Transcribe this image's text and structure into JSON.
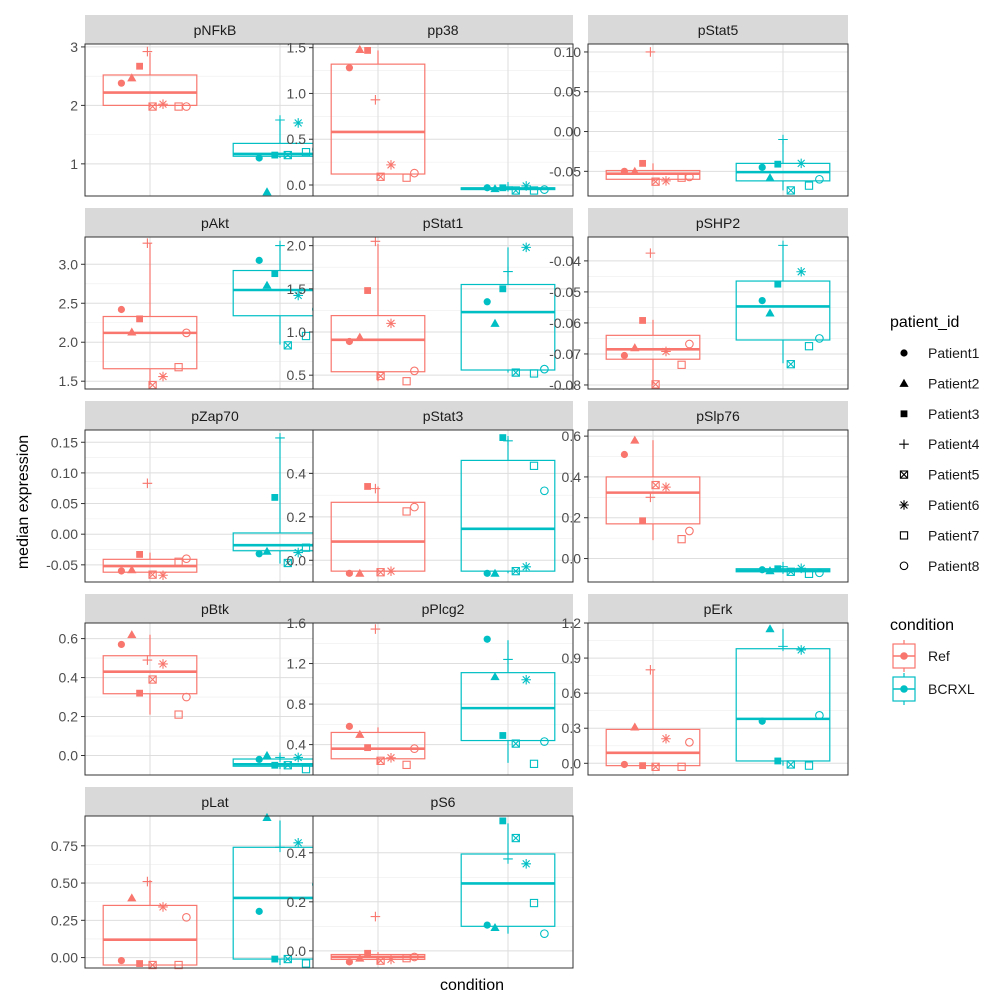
{
  "figure": {
    "xlabel": "condition",
    "ylabel": "median expression"
  },
  "legend": {
    "patient_title": "patient_id",
    "patients": [
      {
        "label": "Patient1",
        "shape": "circle-filled"
      },
      {
        "label": "Patient2",
        "shape": "triangle-filled"
      },
      {
        "label": "Patient3",
        "shape": "square-filled"
      },
      {
        "label": "Patient4",
        "shape": "plus"
      },
      {
        "label": "Patient5",
        "shape": "square-cross"
      },
      {
        "label": "Patient6",
        "shape": "asterisk"
      },
      {
        "label": "Patient7",
        "shape": "square-open"
      },
      {
        "label": "Patient8",
        "shape": "circle-open"
      }
    ],
    "condition_title": "condition",
    "conditions": [
      {
        "label": "Ref",
        "color": "#F8766D"
      },
      {
        "label": "BCRXL",
        "color": "#00BFC4"
      }
    ]
  },
  "chart_data": [
    {
      "type": "box",
      "title": "pNFkB",
      "ylim": [
        0.45,
        3.05
      ],
      "ticks": [
        1,
        2,
        3
      ],
      "tick_labels": [
        "1",
        "2",
        "3"
      ],
      "ref": {
        "min": 1.97,
        "q1": 2.0,
        "median": 2.22,
        "q3": 2.52,
        "max": 2.9,
        "points": [
          2.38,
          2.47,
          2.67,
          2.92,
          1.98,
          2.02,
          1.98,
          1.98
        ]
      },
      "bcrxl": {
        "min": 1.1,
        "q1": 1.13,
        "median": 1.17,
        "q3": 1.35,
        "max": 1.74,
        "points": [
          1.1,
          0.52,
          1.15,
          1.75,
          1.15,
          1.7,
          1.2,
          1.25
        ]
      }
    },
    {
      "type": "box",
      "title": "pp38",
      "ylim": [
        -0.12,
        1.54
      ],
      "ticks": [
        0.0,
        0.5,
        1.0,
        1.5
      ],
      "tick_labels": [
        "0.0",
        "0.5",
        "1.0",
        "1.5"
      ],
      "ref": {
        "min": 0.1,
        "q1": 0.12,
        "median": 0.58,
        "q3": 1.32,
        "max": 1.47,
        "points": [
          1.28,
          1.48,
          1.47,
          0.93,
          0.09,
          0.22,
          0.08,
          0.13
        ]
      },
      "bcrxl": {
        "min": -0.06,
        "q1": -0.05,
        "median": -0.04,
        "q3": -0.03,
        "max": -0.02,
        "points": [
          -0.03,
          -0.04,
          -0.03,
          -0.02,
          -0.06,
          -0.01,
          -0.06,
          -0.05
        ]
      }
    },
    {
      "type": "box",
      "title": "pStat5",
      "ylim": [
        -0.081,
        0.11
      ],
      "ticks": [
        -0.05,
        0.0,
        0.05,
        0.1
      ],
      "tick_labels": [
        "-0.05",
        "0.00",
        "0.05",
        "0.10"
      ],
      "ref": {
        "min": -0.063,
        "q1": -0.06,
        "median": -0.053,
        "q3": -0.049,
        "max": -0.04,
        "points": [
          -0.05,
          -0.05,
          -0.04,
          0.1,
          -0.063,
          -0.062,
          -0.058,
          -0.057
        ]
      },
      "bcrxl": {
        "min": -0.074,
        "q1": -0.062,
        "median": -0.051,
        "q3": -0.04,
        "max": -0.01,
        "points": [
          -0.045,
          -0.058,
          -0.041,
          -0.01,
          -0.074,
          -0.04,
          -0.068,
          -0.06
        ]
      }
    },
    {
      "type": "box",
      "title": "pAkt",
      "ylim": [
        1.4,
        3.35
      ],
      "ticks": [
        1.5,
        2.0,
        2.5,
        3.0
      ],
      "tick_labels": [
        "1.5",
        "2.0",
        "2.5",
        "3.0"
      ],
      "ref": {
        "min": 1.45,
        "q1": 1.66,
        "median": 2.12,
        "q3": 2.33,
        "max": 3.27,
        "points": [
          2.42,
          2.13,
          2.3,
          3.27,
          1.45,
          1.56,
          1.68,
          2.12
        ]
      },
      "bcrxl": {
        "min": 1.97,
        "q1": 2.34,
        "median": 2.67,
        "q3": 2.92,
        "max": 3.24,
        "points": [
          3.05,
          2.73,
          2.88,
          3.24,
          1.96,
          2.6,
          2.08,
          2.42
        ]
      }
    },
    {
      "type": "box",
      "title": "pStat1",
      "ylim": [
        0.34,
        2.1
      ],
      "ticks": [
        0.5,
        1.0,
        1.5,
        2.0
      ],
      "tick_labels": [
        "0.5",
        "1.0",
        "1.5",
        "2.0"
      ],
      "ref": {
        "min": 0.43,
        "q1": 0.54,
        "median": 0.91,
        "q3": 1.19,
        "max": 2.02,
        "points": [
          0.89,
          0.94,
          1.48,
          2.05,
          0.49,
          1.1,
          0.43,
          0.55
        ]
      },
      "bcrxl": {
        "min": 0.53,
        "q1": 0.56,
        "median": 1.23,
        "q3": 1.55,
        "max": 1.98,
        "points": [
          1.35,
          1.1,
          1.5,
          1.7,
          0.53,
          1.98,
          0.52,
          0.57
        ]
      }
    },
    {
      "type": "box",
      "title": "pSHP2",
      "ylim": [
        -0.0813,
        -0.0323
      ],
      "ticks": [
        -0.08,
        -0.07,
        -0.06,
        -0.05,
        -0.04
      ],
      "tick_labels": [
        "-0.08",
        "-0.07",
        "-0.06",
        "-0.05",
        "-0.04"
      ],
      "ref": {
        "min": -0.08,
        "q1": -0.0717,
        "median": -0.0685,
        "q3": -0.064,
        "max": -0.059,
        "points": [
          -0.0705,
          -0.068,
          -0.0592,
          -0.0375,
          -0.0798,
          -0.0692,
          -0.0735,
          -0.0668
        ]
      },
      "bcrxl": {
        "min": -0.073,
        "q1": -0.0655,
        "median": -0.0547,
        "q3": -0.0465,
        "max": -0.035,
        "points": [
          -0.0528,
          -0.0568,
          -0.0475,
          -0.035,
          -0.0733,
          -0.0435,
          -0.0675,
          -0.065
        ]
      }
    },
    {
      "type": "box",
      "title": "pZap70",
      "ylim": [
        -0.078,
        0.17
      ],
      "ticks": [
        -0.05,
        0.0,
        0.05,
        0.1,
        0.15
      ],
      "tick_labels": [
        "-0.05",
        "0.00",
        "0.05",
        "0.10",
        "0.15"
      ],
      "ref": {
        "min": -0.068,
        "q1": -0.062,
        "median": -0.052,
        "q3": -0.041,
        "max": -0.03,
        "points": [
          -0.06,
          -0.058,
          -0.033,
          0.083,
          -0.066,
          -0.067,
          -0.045,
          -0.04
        ]
      },
      "bcrxl": {
        "min": -0.048,
        "q1": -0.027,
        "median": -0.018,
        "q3": 0.002,
        "max": 0.158,
        "points": [
          -0.032,
          -0.028,
          0.06,
          0.157,
          -0.047,
          -0.03,
          -0.022,
          -0.018
        ]
      }
    },
    {
      "type": "box",
      "title": "pStat3",
      "ylim": [
        -0.1,
        0.6
      ],
      "ticks": [
        0.0,
        0.2,
        0.4
      ],
      "tick_labels": [
        "0.0",
        "0.2",
        "0.4"
      ],
      "ref": {
        "min": -0.06,
        "q1": -0.05,
        "median": 0.086,
        "q3": 0.267,
        "max": 0.34,
        "points": [
          -0.06,
          -0.06,
          0.34,
          0.33,
          -0.055,
          -0.05,
          0.225,
          0.245
        ]
      },
      "bcrxl": {
        "min": -0.06,
        "q1": -0.05,
        "median": 0.145,
        "q3": 0.46,
        "max": 0.56,
        "points": [
          -0.06,
          -0.06,
          0.565,
          0.55,
          -0.05,
          -0.03,
          0.435,
          0.32
        ]
      }
    },
    {
      "type": "box",
      "title": "pSlp76",
      "ylim": [
        -0.115,
        0.63
      ],
      "ticks": [
        0.0,
        0.2,
        0.4,
        0.6
      ],
      "tick_labels": [
        "0.0",
        "0.2",
        "0.4",
        "0.6"
      ],
      "ref": {
        "min": 0.09,
        "q1": 0.17,
        "median": 0.323,
        "q3": 0.4,
        "max": 0.58,
        "points": [
          0.51,
          0.58,
          0.185,
          0.3,
          0.36,
          0.35,
          0.095,
          0.135
        ]
      },
      "bcrxl": {
        "min": -0.075,
        "q1": -0.065,
        "median": -0.058,
        "q3": -0.05,
        "max": -0.035,
        "points": [
          -0.055,
          -0.06,
          -0.05,
          -0.04,
          -0.065,
          -0.048,
          -0.075,
          -0.07
        ]
      }
    },
    {
      "type": "box",
      "title": "pBtk",
      "ylim": [
        -0.1,
        0.68
      ],
      "ticks": [
        0.0,
        0.2,
        0.4,
        0.6
      ],
      "tick_labels": [
        "0.0",
        "0.2",
        "0.4",
        "0.6"
      ],
      "ref": {
        "min": 0.21,
        "q1": 0.317,
        "median": 0.43,
        "q3": 0.512,
        "max": 0.62,
        "points": [
          0.57,
          0.62,
          0.32,
          0.49,
          0.39,
          0.47,
          0.21,
          0.3
        ]
      },
      "bcrxl": {
        "min": -0.07,
        "q1": -0.055,
        "median": -0.045,
        "q3": -0.018,
        "max": 0.0,
        "points": [
          -0.02,
          0.0,
          -0.05,
          -0.01,
          -0.05,
          -0.01,
          -0.07,
          -0.05
        ]
      }
    },
    {
      "type": "box",
      "title": "pPlcg2",
      "ylim": [
        0.1,
        1.6
      ],
      "ticks": [
        0.4,
        0.8,
        1.2,
        1.6
      ],
      "tick_labels": [
        "0.4",
        "0.8",
        "1.2",
        "1.6"
      ],
      "ref": {
        "min": 0.2,
        "q1": 0.26,
        "median": 0.36,
        "q3": 0.52,
        "max": 0.57,
        "points": [
          0.58,
          0.5,
          0.37,
          1.54,
          0.24,
          0.27,
          0.2,
          0.36
        ]
      },
      "bcrxl": {
        "min": 0.22,
        "q1": 0.44,
        "median": 0.76,
        "q3": 1.11,
        "max": 1.43,
        "points": [
          1.44,
          1.07,
          0.49,
          1.24,
          0.41,
          1.04,
          0.21,
          0.43
        ]
      }
    },
    {
      "type": "box",
      "title": "pErk",
      "ylim": [
        -0.1,
        1.2
      ],
      "ticks": [
        0.0,
        0.3,
        0.6,
        0.9,
        1.2
      ],
      "tick_labels": [
        "0.0",
        "0.3",
        "0.6",
        "0.9",
        "1.2"
      ],
      "ref": {
        "min": -0.03,
        "q1": -0.02,
        "median": 0.09,
        "q3": 0.29,
        "max": 0.8,
        "points": [
          -0.01,
          0.31,
          -0.02,
          0.8,
          -0.03,
          0.21,
          -0.03,
          0.18
        ]
      },
      "bcrxl": {
        "min": -0.02,
        "q1": 0.02,
        "median": 0.38,
        "q3": 0.98,
        "max": 1.15,
        "points": [
          0.36,
          1.15,
          0.02,
          1.0,
          -0.01,
          0.97,
          -0.02,
          0.41
        ]
      }
    },
    {
      "type": "box",
      "title": "pLat",
      "ylim": [
        -0.07,
        0.95
      ],
      "ticks": [
        0.0,
        0.25,
        0.5,
        0.75
      ],
      "tick_labels": [
        "0.00",
        "0.25",
        "0.50",
        "0.75"
      ],
      "ref": {
        "min": -0.05,
        "q1": -0.05,
        "median": 0.12,
        "q3": 0.35,
        "max": 0.52,
        "points": [
          -0.02,
          0.4,
          -0.04,
          0.51,
          -0.05,
          0.34,
          -0.05,
          0.27
        ]
      },
      "bcrxl": {
        "min": -0.05,
        "q1": -0.01,
        "median": 0.4,
        "q3": 0.74,
        "max": 0.92,
        "points": [
          0.31,
          0.94,
          -0.01,
          0.74,
          -0.01,
          0.77,
          -0.04,
          0.49
        ]
      }
    },
    {
      "type": "box",
      "title": "pS6",
      "ylim": [
        -0.07,
        0.55
      ],
      "ticks": [
        0.0,
        0.2,
        0.4
      ],
      "tick_labels": [
        "0.0",
        "0.2",
        "0.4"
      ],
      "ref": {
        "min": -0.05,
        "q1": -0.035,
        "median": -0.025,
        "q3": -0.015,
        "max": -0.005,
        "points": [
          -0.045,
          -0.03,
          -0.01,
          0.14,
          -0.04,
          -0.035,
          -0.03,
          -0.025
        ]
      },
      "bcrxl": {
        "min": 0.07,
        "q1": 0.1,
        "median": 0.275,
        "q3": 0.395,
        "max": 0.52,
        "points": [
          0.105,
          0.095,
          0.53,
          0.375,
          0.46,
          0.355,
          0.195,
          0.07
        ]
      }
    }
  ]
}
